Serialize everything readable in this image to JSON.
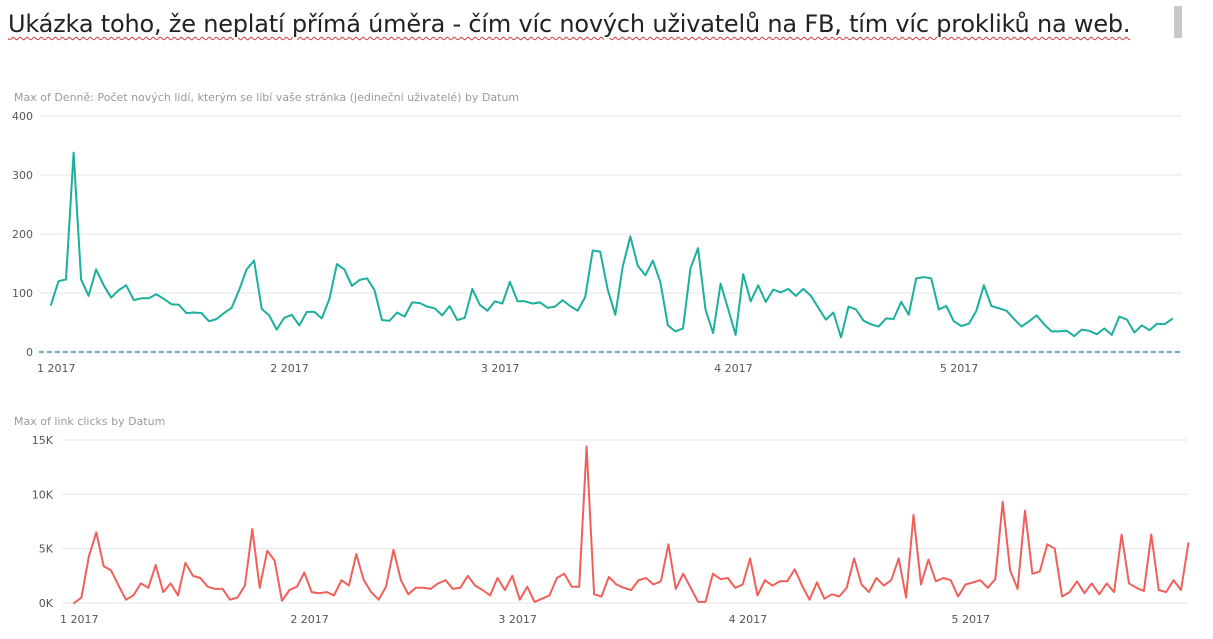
{
  "page": {
    "title": "Ukázka toho, že neplatí přímá úměra - čím víc nových uživatelů na FB, tím víc prokliků na web."
  },
  "chart_data": [
    {
      "type": "line",
      "title": "Max of Denně: Počet nových lidí, kterým se líbí vaše stránka (jedineční uživatelé) by Datum",
      "color": "#1ab09c",
      "baseline_color": "#5fb8c8",
      "grid": true,
      "ylim": [
        0,
        400
      ],
      "y_ticks": [
        0,
        100,
        200,
        300,
        400
      ],
      "y_tick_labels": [
        "0",
        "100",
        "200",
        "300",
        "400"
      ],
      "x_ticks": [
        0,
        31,
        59,
        90,
        120
      ],
      "x_tick_labels": [
        "1 2017",
        "2 2017",
        "3 2017",
        "4 2017",
        "5 2017"
      ],
      "x_range": [
        0,
        149
      ],
      "series": [
        {
          "values": [
            80,
            120,
            123,
            338,
            123,
            95,
            140,
            113,
            92,
            105,
            113,
            88,
            91,
            91,
            98,
            90,
            81,
            80,
            66,
            67,
            66,
            52,
            56,
            66,
            75,
            105,
            140,
            155,
            73,
            62,
            38,
            58,
            63,
            45,
            68,
            68,
            57,
            90,
            149,
            140,
            112,
            122,
            125,
            105,
            54,
            53,
            67,
            60,
            84,
            83,
            77,
            74,
            62,
            78,
            54,
            58,
            107,
            80,
            70,
            86,
            82,
            119,
            86,
            86,
            82,
            84,
            75,
            77,
            88,
            78,
            70,
            93,
            172,
            170,
            106,
            63,
            145,
            196,
            146,
            130,
            155,
            118,
            45,
            35,
            40,
            142,
            176,
            72,
            32,
            116,
            73,
            29,
            132,
            86,
            113,
            85,
            106,
            101,
            107,
            95,
            107,
            95,
            75,
            55,
            67,
            25,
            77,
            72,
            53,
            47,
            43,
            57,
            56,
            85,
            63,
            125,
            127,
            125,
            72,
            78,
            52,
            44,
            48,
            70,
            113,
            78,
            74,
            70,
            56,
            43,
            52,
            62,
            47,
            35,
            35,
            36,
            27,
            38,
            36,
            30,
            40,
            29,
            60,
            55,
            33,
            45,
            37,
            48,
            47,
            56
          ]
        }
      ]
    },
    {
      "type": "line",
      "title": "Max of link clicks by Datum",
      "color": "#f0605a",
      "grid": true,
      "ylim": [
        0,
        15000
      ],
      "y_ticks": [
        0,
        5000,
        10000,
        15000
      ],
      "y_tick_labels": [
        "0K",
        "5K",
        "10K",
        "15K"
      ],
      "x_ticks": [
        0,
        31,
        59,
        90,
        120
      ],
      "x_tick_labels": [
        "1 2017",
        "2 2017",
        "3 2017",
        "4 2017",
        "5 2017"
      ],
      "x_range": [
        0,
        149
      ],
      "series": [
        {
          "values": [
            0,
            500,
            4300,
            6500,
            3400,
            3000,
            1600,
            300,
            700,
            1800,
            1400,
            3500,
            1000,
            1800,
            700,
            3700,
            2500,
            2300,
            1500,
            1300,
            1300,
            300,
            500,
            1600,
            6800,
            1400,
            4800,
            3900,
            200,
            1200,
            1500,
            2800,
            1000,
            900,
            1000,
            700,
            2100,
            1600,
            4500,
            2100,
            1000,
            300,
            1500,
            4900,
            2100,
            800,
            1400,
            1400,
            1300,
            1800,
            2100,
            1300,
            1400,
            2500,
            1600,
            1200,
            700,
            2300,
            1200,
            2500,
            300,
            1500,
            100,
            400,
            700,
            2300,
            2700,
            1500,
            1500,
            14400,
            800,
            600,
            2400,
            1700,
            1400,
            1200,
            2100,
            2300,
            1700,
            2000,
            5400,
            1300,
            2700,
            1400,
            100,
            100,
            2700,
            2200,
            2300,
            1400,
            1700,
            4100,
            700,
            2100,
            1600,
            2000,
            2000,
            3100,
            1600,
            300,
            1900,
            400,
            800,
            600,
            1400,
            4100,
            1700,
            1000,
            2300,
            1600,
            2100,
            4100,
            500,
            8100,
            1700,
            4000,
            2000,
            2300,
            2100,
            600,
            1700,
            1900,
            2100,
            1400,
            2200,
            9300,
            3000,
            1300,
            8500,
            2700,
            2900,
            5400,
            5000,
            600,
            1000,
            2000,
            900,
            1800,
            800,
            1800,
            1000,
            6300,
            1800,
            1400,
            1100,
            6300,
            1200,
            1000,
            2100,
            1200,
            5500
          ]
        }
      ]
    }
  ]
}
